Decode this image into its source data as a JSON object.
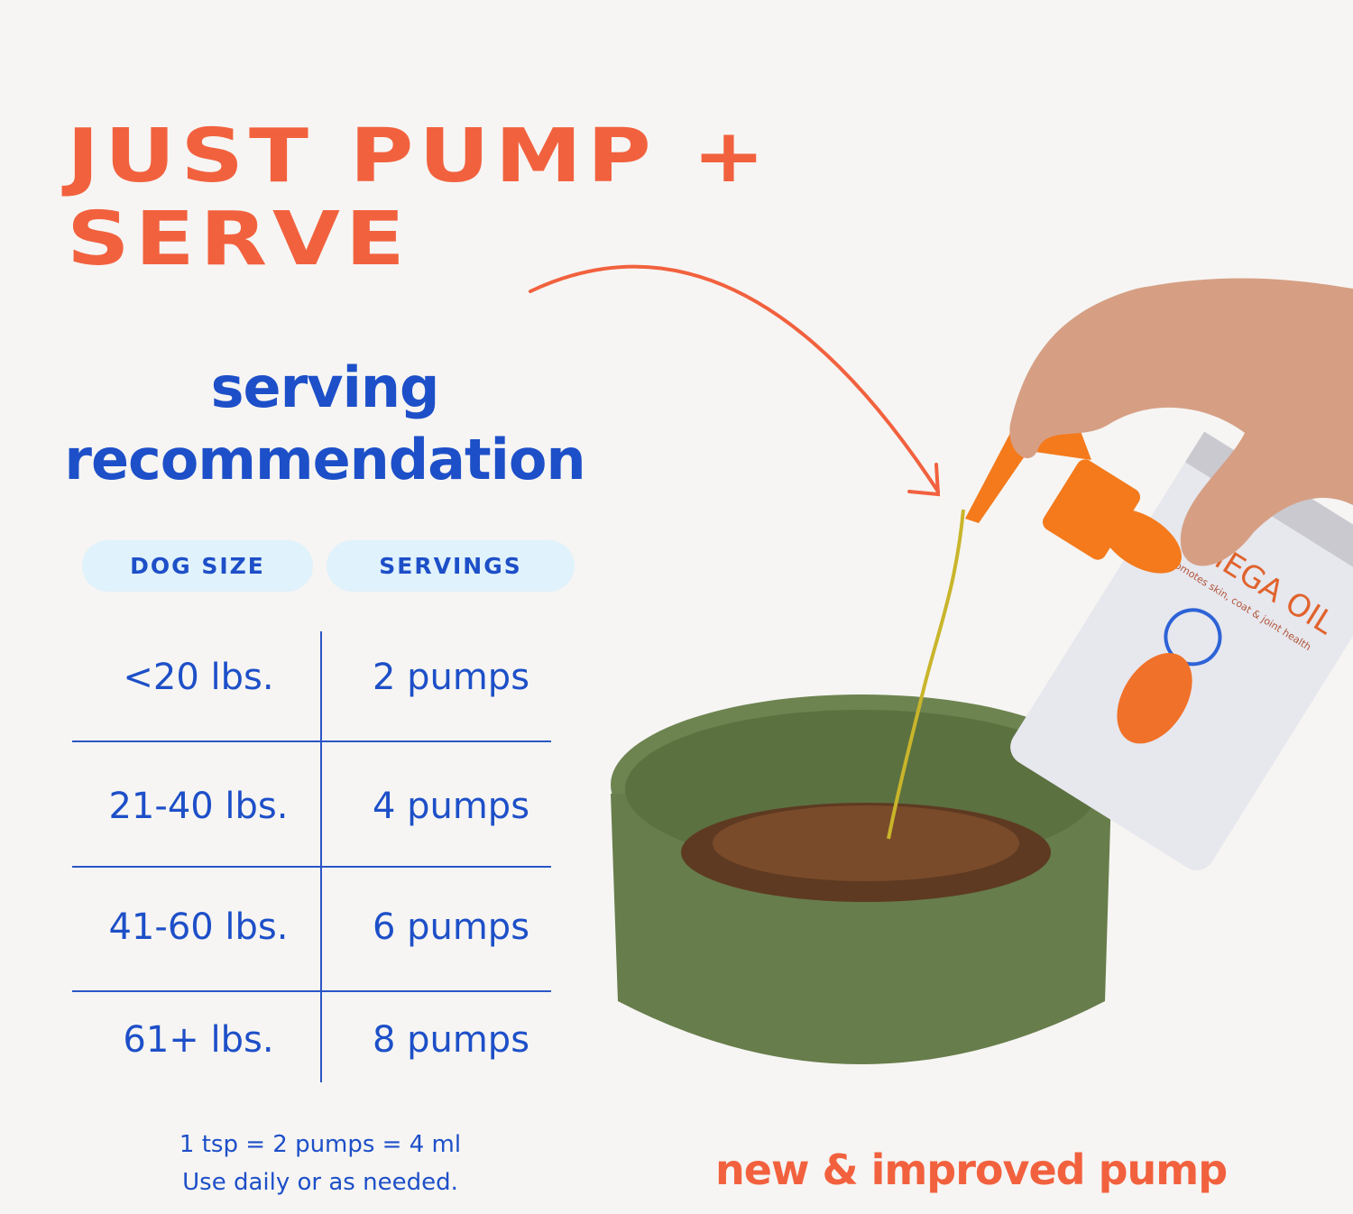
{
  "headline": {
    "line1": "JUST PUMP +",
    "line2": "SERVE"
  },
  "subtitle": {
    "line1": "serving",
    "line2": "recommendation"
  },
  "table": {
    "headers": [
      "DOG SIZE",
      "SERVINGS"
    ],
    "rows": [
      {
        "size": "<20 lbs.",
        "servings": "2 pumps"
      },
      {
        "size": "21-40  lbs.",
        "servings": "4 pumps"
      },
      {
        "size": "41-60  lbs.",
        "servings": "6 pumps"
      },
      {
        "size": "61+ lbs.",
        "servings": "8 pumps"
      }
    ]
  },
  "note": {
    "line1": "1 tsp = 2 pumps = 4 ml",
    "line2": "Use daily or as needed."
  },
  "caption": "new & improved pump",
  "product": {
    "name": "OMEGA OIL",
    "tagline": "promotes skin, coat & joint health"
  },
  "colors": {
    "accent_orange": "#f2613e",
    "brand_blue": "#1d4fc8",
    "pill_bg": "#e0f2fb",
    "bowl_green": "#6b8150"
  }
}
